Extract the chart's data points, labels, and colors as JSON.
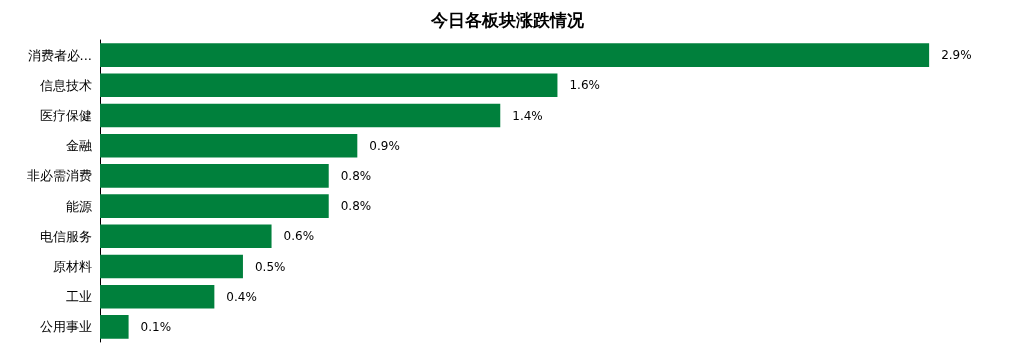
{
  "chart_data": {
    "type": "bar",
    "orientation": "horizontal",
    "title": "今日各板块涨跌情况",
    "categories": [
      "消费者必...",
      "信息技术",
      "医疗保健",
      "金融",
      "非必需消费",
      "能源",
      "电信服务",
      "原材料",
      "工业",
      "公用事业"
    ],
    "values": [
      2.9,
      1.6,
      1.4,
      0.9,
      0.8,
      0.8,
      0.6,
      0.5,
      0.4,
      0.1
    ],
    "value_labels": [
      "2.9%",
      "1.6%",
      "1.4%",
      "0.9%",
      "0.8%",
      "0.8%",
      "0.6%",
      "0.5%",
      "0.4%",
      "0.1%"
    ],
    "color": "#00803c"
  }
}
